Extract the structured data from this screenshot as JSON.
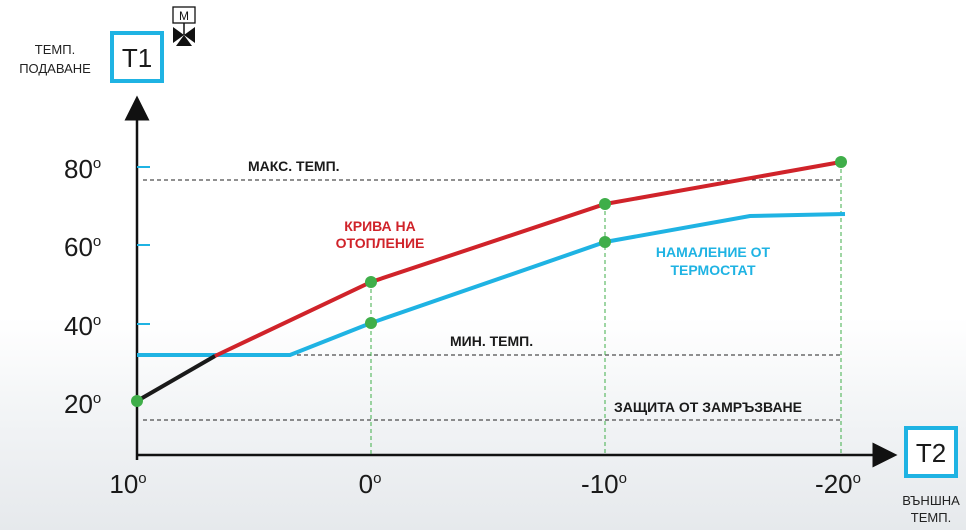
{
  "y_axis": {
    "label_line1": "ТЕМП.",
    "label_line2": "ПОДАВАНЕ",
    "box_label": "T1",
    "valve_label": "M",
    "ticks": [
      "80",
      "60",
      "40",
      "20"
    ],
    "degree_mark": "o"
  },
  "x_axis": {
    "box_label": "T2",
    "label_line1": "ВЪНШНА",
    "label_line2": "ТЕМП.",
    "ticks": [
      "10",
      "0",
      "-10",
      "-20"
    ]
  },
  "reference_lines": {
    "max": "МАКС. ТЕМП.",
    "min": "МИН. ТЕМП.",
    "frost": "ЗАЩИТА ОТ ЗАМРЪЗВАНЕ"
  },
  "curves": {
    "heating_line1": "КРИВА НА",
    "heating_line2": "ОТОПЛЕНИЕ",
    "thermostat_line1": "НАМАЛЕНИЕ ОТ",
    "thermostat_line2": "ТЕРМОСТАТ"
  },
  "colors": {
    "heating": "#d0232a",
    "thermostat": "#1fb3e3",
    "points": "#3fae49",
    "box": "#1fb3e3"
  },
  "chart_data": {
    "type": "line",
    "x": [
      10,
      0,
      -10,
      -20
    ],
    "series": [
      {
        "name": "КРИВА НА ОТОПЛЕНИЕ",
        "values": [
          20,
          51,
          71,
          82
        ]
      },
      {
        "name": "НАМАЛЕНИЕ ОТ ТЕРМОСТАТ",
        "values": [
          32,
          41,
          61,
          69
        ]
      }
    ]
  }
}
